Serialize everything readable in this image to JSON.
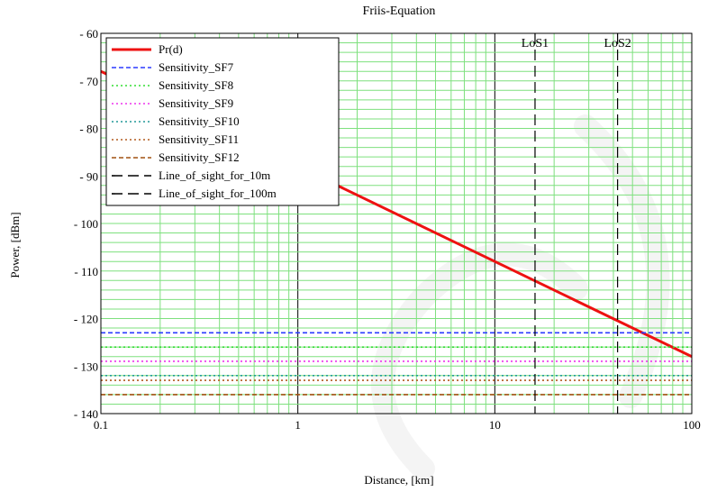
{
  "chart_data": {
    "type": "line",
    "title": "Friis-Equation",
    "xlabel": "Distance, [km]",
    "ylabel": "Power, [dBm]",
    "xscale": "log",
    "xlim": [
      0.1,
      100
    ],
    "ylim": [
      -140,
      -60
    ],
    "x_ticks": [
      {
        "value": 0.1,
        "label": "0.1"
      },
      {
        "value": 1,
        "label": "1"
      },
      {
        "value": 10,
        "label": "10"
      },
      {
        "value": 100,
        "label": "100"
      }
    ],
    "y_ticks": [
      {
        "value": -60,
        "label": "- 60"
      },
      {
        "value": -70,
        "label": "- 70"
      },
      {
        "value": -80,
        "label": "- 80"
      },
      {
        "value": -90,
        "label": "- 90"
      },
      {
        "value": -100,
        "label": "- 100"
      },
      {
        "value": -110,
        "label": "- 110"
      },
      {
        "value": -120,
        "label": "- 120"
      },
      {
        "value": -130,
        "label": "- 130"
      },
      {
        "value": -140,
        "label": "- 140"
      }
    ],
    "grid": true,
    "grid_color": "#7ee07e",
    "legend_position": "top-left",
    "series": [
      {
        "name": "Pr(d)",
        "kind": "line",
        "color": "#ee1111",
        "dash": "solid",
        "x": [
          0.1,
          100
        ],
        "y": [
          -68,
          -128
        ]
      },
      {
        "name": "Sensitivity_SF7",
        "kind": "hline",
        "color": "#2b3bff",
        "dash": "dashed",
        "value": -123
      },
      {
        "name": "Sensitivity_SF8",
        "kind": "hline",
        "color": "#33dd33",
        "dash": "dotted",
        "value": -126
      },
      {
        "name": "Sensitivity_SF9",
        "kind": "hline",
        "color": "#ee33ee",
        "dash": "dotted",
        "value": -129
      },
      {
        "name": "Sensitivity_SF10",
        "kind": "hline",
        "color": "#229999",
        "dash": "dotted",
        "value": -132
      },
      {
        "name": "Sensitivity_SF11",
        "kind": "hline",
        "color": "#b25a1e",
        "dash": "dotted",
        "value": -133
      },
      {
        "name": "Sensitivity_SF12",
        "kind": "hline",
        "color": "#a05010",
        "dash": "dashed",
        "value": -136
      },
      {
        "name": "Line_of_sight_for_10m",
        "kind": "vline",
        "color": "#000000",
        "dash": "longdash",
        "value": 16,
        "label": "LoS1"
      },
      {
        "name": "Line_of_sight_for_100m",
        "kind": "vline",
        "color": "#000000",
        "dash": "longdash",
        "value": 42,
        "label": "LoS2"
      }
    ]
  }
}
